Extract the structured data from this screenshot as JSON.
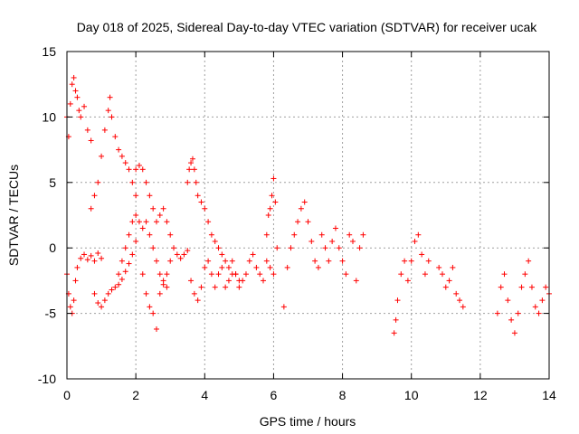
{
  "chart_data": {
    "type": "scatter",
    "title": "Day 018 of 2025, Sidereal Day-to-day VTEC variation (SDTVAR) for receiver ucak",
    "xlabel": "GPS time / hours",
    "ylabel": "SDTVAR / TECUs",
    "xlim": [
      0,
      14
    ],
    "ylim": [
      -10,
      15
    ],
    "xticks": [
      0,
      2,
      4,
      6,
      8,
      10,
      12,
      14
    ],
    "yticks": [
      -10,
      -5,
      0,
      5,
      10,
      15
    ],
    "xtick_labels": [
      "0",
      "2",
      "4",
      "6",
      "8",
      "10",
      "12",
      "14"
    ],
    "ytick_labels": [
      "-10",
      "-5",
      "0",
      "5",
      "10",
      "15"
    ],
    "grid": true,
    "marker": "+",
    "color": "#ff0000",
    "series": [
      {
        "name": "seg-a",
        "x": [
          0.0,
          0.05,
          0.1,
          0.15,
          0.2,
          0.25,
          0.3,
          0.35,
          0.4,
          0.5,
          0.6,
          0.7
        ],
        "y": [
          10.0,
          8.5,
          11.0,
          12.5,
          13.0,
          12.0,
          11.5,
          10.5,
          10.0,
          10.8,
          9.0,
          8.2
        ]
      },
      {
        "name": "seg-b",
        "x": [
          0.0,
          0.05,
          0.1,
          0.15,
          0.2,
          0.25,
          0.3,
          0.4,
          0.5,
          0.6,
          0.7,
          0.8,
          0.9,
          1.0
        ],
        "y": [
          -2.0,
          -3.5,
          -4.5,
          -5.0,
          -4.0,
          -2.5,
          -1.5,
          -0.8,
          -0.5,
          -0.9,
          -0.6,
          -1.0,
          -0.4,
          -0.8
        ]
      },
      {
        "name": "seg-c",
        "x": [
          0.8,
          0.9,
          1.0,
          1.1,
          1.2,
          1.3,
          1.4,
          1.5,
          1.6,
          1.7,
          1.8,
          1.9,
          2.0
        ],
        "y": [
          -3.5,
          -4.2,
          -4.5,
          -4.0,
          -3.5,
          -3.2,
          -3.0,
          -2.8,
          -2.4,
          -1.8,
          -1.2,
          -0.5,
          0.5
        ]
      },
      {
        "name": "seg-d",
        "x": [
          0.7,
          0.8,
          0.9,
          1.0,
          1.1,
          1.2,
          1.25,
          1.3,
          1.4,
          1.5,
          1.6,
          1.7,
          1.8,
          1.9,
          2.0
        ],
        "y": [
          3.0,
          4.0,
          5.0,
          7.0,
          9.0,
          10.5,
          11.5,
          10.0,
          8.5,
          7.5,
          7.0,
          6.5,
          6.0,
          5.0,
          4.0
        ]
      },
      {
        "name": "seg-e",
        "x": [
          1.5,
          1.6,
          1.7,
          1.8,
          1.9,
          2.0,
          2.1,
          2.2,
          2.3,
          2.4,
          2.5,
          2.6,
          2.7,
          2.8,
          2.9,
          3.0
        ],
        "y": [
          -2.0,
          -1.0,
          0.0,
          1.0,
          2.0,
          2.5,
          2.0,
          1.5,
          2.0,
          1.0,
          0.0,
          -1.0,
          -2.0,
          -2.5,
          -2.0,
          -1.0
        ]
      },
      {
        "name": "seg-f",
        "x": [
          2.0,
          2.1,
          2.2,
          2.3,
          2.4,
          2.5,
          2.6,
          2.7,
          2.8,
          2.9,
          3.0,
          3.1,
          3.2,
          3.3,
          3.4,
          3.5
        ],
        "y": [
          6.0,
          6.3,
          6.0,
          5.0,
          4.0,
          3.0,
          2.0,
          2.5,
          3.0,
          2.0,
          1.0,
          0.0,
          -0.5,
          -0.8,
          -0.5,
          -0.2
        ]
      },
      {
        "name": "seg-g",
        "x": [
          2.2,
          2.3,
          2.4,
          2.5,
          2.6,
          2.7,
          2.8,
          2.9
        ],
        "y": [
          -2.0,
          -3.5,
          -4.5,
          -5.0,
          -6.2,
          -3.5,
          -2.8,
          -3.0
        ]
      },
      {
        "name": "seg-h",
        "x": [
          3.5,
          3.55,
          3.6,
          3.65,
          3.7,
          3.75,
          3.8,
          3.9,
          4.0,
          4.1,
          4.2,
          4.3,
          4.4,
          4.5,
          4.6,
          4.7,
          4.8,
          4.9,
          5.0
        ],
        "y": [
          5.0,
          6.0,
          6.5,
          6.8,
          6.0,
          5.0,
          4.0,
          3.5,
          3.0,
          2.0,
          1.0,
          0.5,
          0.0,
          -0.5,
          -1.0,
          -1.5,
          -2.0,
          -2.0,
          -2.5
        ]
      },
      {
        "name": "seg-i",
        "x": [
          3.6,
          3.7,
          3.8,
          3.9,
          4.0,
          4.1,
          4.2,
          4.3,
          4.4,
          4.5,
          4.6,
          4.7,
          4.8,
          4.9,
          5.0,
          5.1,
          5.2,
          5.3,
          5.4,
          5.5,
          5.6,
          5.7,
          5.8,
          5.9,
          6.0
        ],
        "y": [
          -2.5,
          -3.5,
          -4.0,
          -3.0,
          -1.5,
          -1.0,
          -2.0,
          -3.0,
          -2.0,
          -1.5,
          -3.0,
          -2.5,
          -1.0,
          -2.0,
          -3.0,
          -2.5,
          -2.0,
          -1.0,
          -0.5,
          -1.5,
          -2.0,
          -2.5,
          -1.0,
          -1.5,
          -2.0
        ]
      },
      {
        "name": "seg-j",
        "x": [
          5.8,
          5.85,
          5.9,
          5.95,
          6.0,
          6.05,
          6.1
        ],
        "y": [
          1.0,
          2.5,
          3.0,
          4.0,
          5.3,
          3.5,
          0.0
        ]
      },
      {
        "name": "seg-k",
        "x": [
          6.3,
          6.4,
          6.5,
          6.6,
          6.7,
          6.8,
          6.9,
          7.0,
          7.1,
          7.2,
          7.3
        ],
        "y": [
          -4.5,
          -1.5,
          0.0,
          1.0,
          2.0,
          3.0,
          3.5,
          2.0,
          0.5,
          -1.0,
          -1.5
        ]
      },
      {
        "name": "seg-l",
        "x": [
          7.4,
          7.5,
          7.6,
          7.7,
          7.8,
          7.9,
          8.0,
          8.1,
          8.2,
          8.3,
          8.4,
          8.5,
          8.6
        ],
        "y": [
          1.0,
          0.0,
          -1.0,
          0.5,
          1.5,
          0.0,
          -1.0,
          -2.0,
          1.0,
          0.5,
          -2.5,
          0.0,
          1.0
        ]
      },
      {
        "name": "seg-m",
        "x": [
          9.5,
          9.55,
          9.6,
          9.7,
          9.8,
          9.9,
          10.0,
          10.1,
          10.2,
          10.3,
          10.4,
          10.5
        ],
        "y": [
          -6.5,
          -5.5,
          -4.0,
          -2.0,
          -1.0,
          -2.5,
          -1.0,
          0.5,
          1.0,
          -0.5,
          -2.0,
          -1.0
        ]
      },
      {
        "name": "seg-n",
        "x": [
          10.8,
          10.9,
          11.0,
          11.1,
          11.2,
          11.3,
          11.4,
          11.5
        ],
        "y": [
          -1.5,
          -2.0,
          -3.0,
          -2.5,
          -1.5,
          -3.5,
          -4.0,
          -4.5
        ]
      },
      {
        "name": "seg-o",
        "x": [
          12.5,
          12.6,
          12.7,
          12.8,
          12.9,
          13.0,
          13.1,
          13.2,
          13.3,
          13.4,
          13.5,
          13.6,
          13.7,
          13.8,
          13.9,
          14.0
        ],
        "y": [
          -5.0,
          -3.0,
          -2.0,
          -4.0,
          -5.5,
          -6.5,
          -5.0,
          -3.0,
          -2.0,
          -1.0,
          -3.0,
          -4.5,
          -5.0,
          -4.0,
          -3.0,
          -3.5
        ]
      }
    ]
  }
}
